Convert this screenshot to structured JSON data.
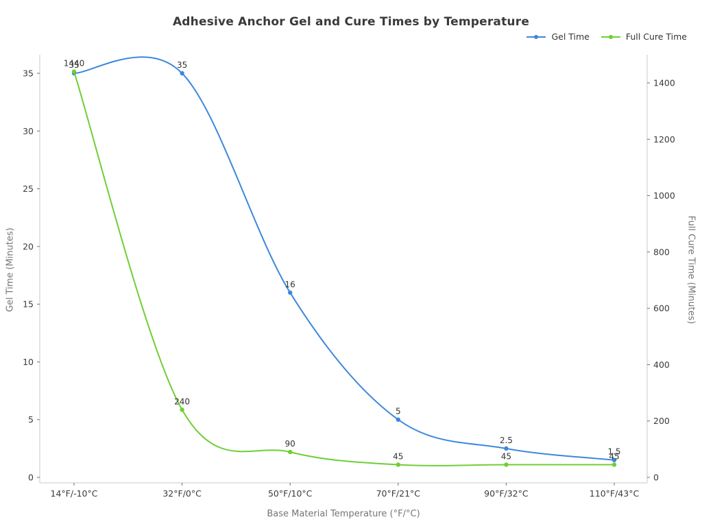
{
  "chart_data": {
    "type": "line",
    "title": "Adhesive Anchor Gel and Cure Times by Temperature",
    "xlabel": "Base Material Temperature (°F/°C)",
    "ylabel_left": "Gel Time (Minutes)",
    "ylabel_right": "Full Cure Time (Minutes)",
    "categories": [
      "14°F/-10°C",
      "32°F/0°C",
      "50°F/10°C",
      "70°F/21°C",
      "90°F/32°C",
      "110°F/43°C"
    ],
    "series": [
      {
        "name": "Gel Time",
        "axis": "left",
        "color": "#3c87dd",
        "values": [
          35,
          35,
          16,
          5,
          2.5,
          1.5
        ],
        "labels": [
          "35",
          "35",
          "16",
          "5",
          "2.5",
          "1.5"
        ]
      },
      {
        "name": "Full Cure Time",
        "axis": "right",
        "color": "#6fce33",
        "values": [
          1440,
          240,
          90,
          45,
          45,
          45
        ],
        "labels": [
          "1440",
          "240",
          "90",
          "45",
          "45",
          "45"
        ]
      }
    ],
    "axes": {
      "left": {
        "min": 0,
        "max": 35,
        "step": 5,
        "ticks": [
          0,
          5,
          10,
          15,
          20,
          25,
          30,
          35
        ]
      },
      "right": {
        "min": 0,
        "max": 1400,
        "step": 200,
        "ticks": [
          0,
          200,
          400,
          600,
          800,
          1000,
          1200,
          1400
        ]
      }
    },
    "grid": false,
    "legend_position": "top-right",
    "style": {
      "spine_color": "#c9c9c9",
      "tick_color": "#6e6e6e",
      "tick_label_color": "#3a3a3a",
      "data_label_color": "#333333"
    }
  }
}
